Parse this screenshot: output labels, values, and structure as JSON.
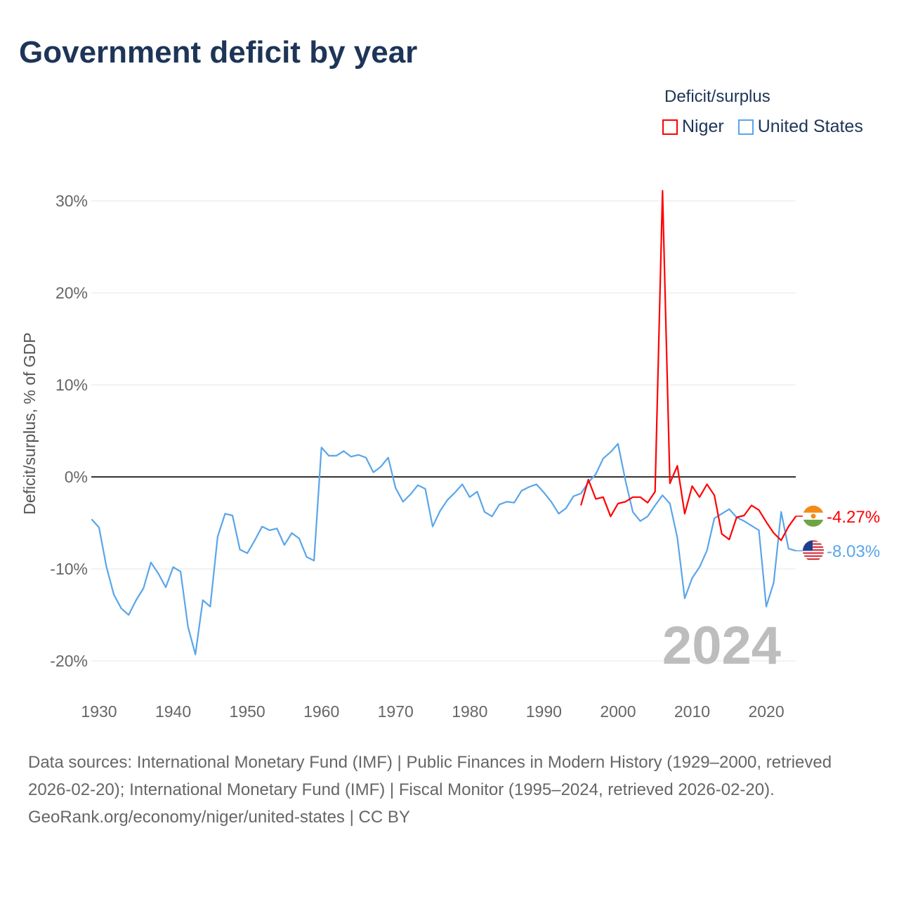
{
  "title": "Government deficit by year",
  "legend": {
    "title": "Deficit/surplus",
    "items": [
      {
        "label": "Niger",
        "color": "#ff0000"
      },
      {
        "label": "United States",
        "color": "#5aa5ea"
      }
    ]
  },
  "footer": {
    "sources": "Data sources: International Monetary Fund (IMF) | Public Finances in Modern History (1929–2000, retrieved 2026-02-20); International Monetary Fund (IMF) | Fiscal Monitor (1995–2024, retrieved 2026-02-20).",
    "credit": "GeoRank.org/economy/niger/united-states | CC BY"
  },
  "chart_data": {
    "type": "line",
    "title": "Government deficit by year",
    "xlabel": "",
    "ylabel": "Deficit/surplus, % of GDP",
    "xlim": [
      1929,
      2024
    ],
    "ylim": [
      -20,
      30
    ],
    "x_ticks": [
      1930,
      1940,
      1950,
      1960,
      1970,
      1980,
      1990,
      2000,
      2010,
      2020
    ],
    "y_ticks": [
      {
        "v": 30,
        "label": "30%"
      },
      {
        "v": 20,
        "label": "20%"
      },
      {
        "v": 10,
        "label": "10%"
      },
      {
        "v": 0,
        "label": "0%"
      },
      {
        "v": -10,
        "label": "-10%"
      },
      {
        "v": -20,
        "label": "-20%"
      }
    ],
    "current_year": "2024",
    "series": [
      {
        "name": "United States",
        "color": "#5aa5ea",
        "flag": "us-flag",
        "end_label": "-8.03%",
        "start": 1929,
        "values": [
          -4.6,
          -5.5,
          -9.8,
          -12.8,
          -14.3,
          -15.0,
          -13.4,
          -12.1,
          -9.3,
          -10.5,
          -12.0,
          -9.8,
          -10.3,
          -16.3,
          -19.3,
          -13.4,
          -14.1,
          -6.5,
          -4.0,
          -4.2,
          -7.9,
          -8.3,
          -6.9,
          -5.4,
          -5.8,
          -5.6,
          -7.4,
          -6.1,
          -6.7,
          -8.7,
          -9.1,
          3.2,
          2.3,
          2.3,
          2.8,
          2.2,
          2.4,
          2.1,
          0.5,
          1.1,
          2.1,
          -1.2,
          -2.7,
          -1.9,
          -0.9,
          -1.3,
          -5.4,
          -3.7,
          -2.5,
          -1.7,
          -0.8,
          -2.2,
          -1.6,
          -3.8,
          -4.3,
          -3.0,
          -2.7,
          -2.8,
          -1.5,
          -1.1,
          -0.8,
          -1.7,
          -2.7,
          -4.0,
          -3.4,
          -2.1,
          -1.8,
          -0.6,
          0.3,
          2.0,
          2.7,
          3.6,
          -0.4,
          -3.8,
          -4.8,
          -4.3,
          -3.1,
          -2.0,
          -2.9,
          -6.6,
          -13.2,
          -11.0,
          -9.8,
          -8.0,
          -4.5,
          -4.0,
          -3.5,
          -4.4,
          -4.8,
          -5.3,
          -5.8,
          -14.1,
          -11.5,
          -3.8,
          -7.8,
          -8.03
        ]
      },
      {
        "name": "Niger",
        "color": "#ff0000",
        "flag": "niger-flag",
        "end_label": "-4.27%",
        "start": 1995,
        "values": [
          -3.1,
          -0.3,
          -2.4,
          -2.2,
          -4.3,
          -2.9,
          -2.7,
          -2.2,
          -2.2,
          -2.8,
          -1.6,
          31.1,
          -0.7,
          1.2,
          -4.0,
          -1.0,
          -2.2,
          -0.8,
          -2.0,
          -6.2,
          -6.8,
          -4.4,
          -4.2,
          -3.1,
          -3.6,
          -4.9,
          -6.1,
          -6.9,
          -5.4,
          -4.27
        ]
      }
    ]
  }
}
